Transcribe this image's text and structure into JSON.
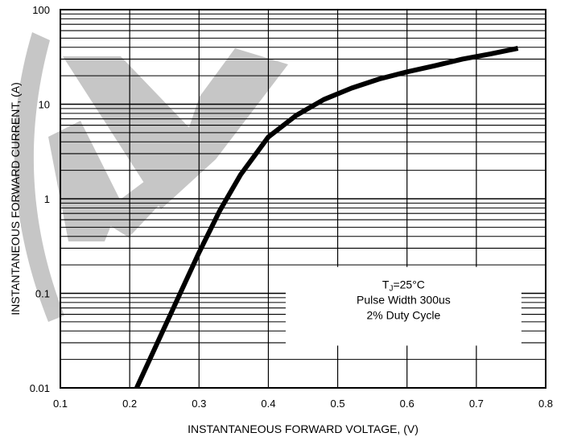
{
  "chart_data": {
    "type": "line",
    "title": "",
    "xlabel": "INSTANTANEOUS FORWARD VOLTAGE, (V)",
    "ylabel": "INSTANTANEOUS FORWARD CURRENT, (A)",
    "xlim": [
      0.1,
      0.8
    ],
    "ylim": [
      0.01,
      100
    ],
    "y_scale": "log",
    "grid": true,
    "x_ticks": [
      "0.1",
      "0.2",
      "0.3",
      "0.4",
      "0.5",
      "0.6",
      "0.7",
      "0.8"
    ],
    "y_ticks": [
      "0.01",
      "0.1",
      "1",
      "10",
      "100"
    ],
    "series": [
      {
        "color": "#000000",
        "x": [
          0.21,
          0.24,
          0.27,
          0.3,
          0.33,
          0.36,
          0.4,
          0.44,
          0.48,
          0.52,
          0.56,
          0.6,
          0.64,
          0.68,
          0.72,
          0.76
        ],
        "y": [
          0.01,
          0.03,
          0.09,
          0.27,
          0.75,
          1.8,
          4.5,
          7.6,
          11.2,
          14.8,
          18.5,
          22,
          25.5,
          30,
          34,
          39
        ]
      }
    ],
    "annotation": {
      "lines": [
        "T",
        "J",
        "=25°C",
        "Pulse Width 300us",
        "2% Duty Cycle"
      ],
      "placement": "lower-right"
    },
    "watermark_color": "#bdbdbd"
  }
}
